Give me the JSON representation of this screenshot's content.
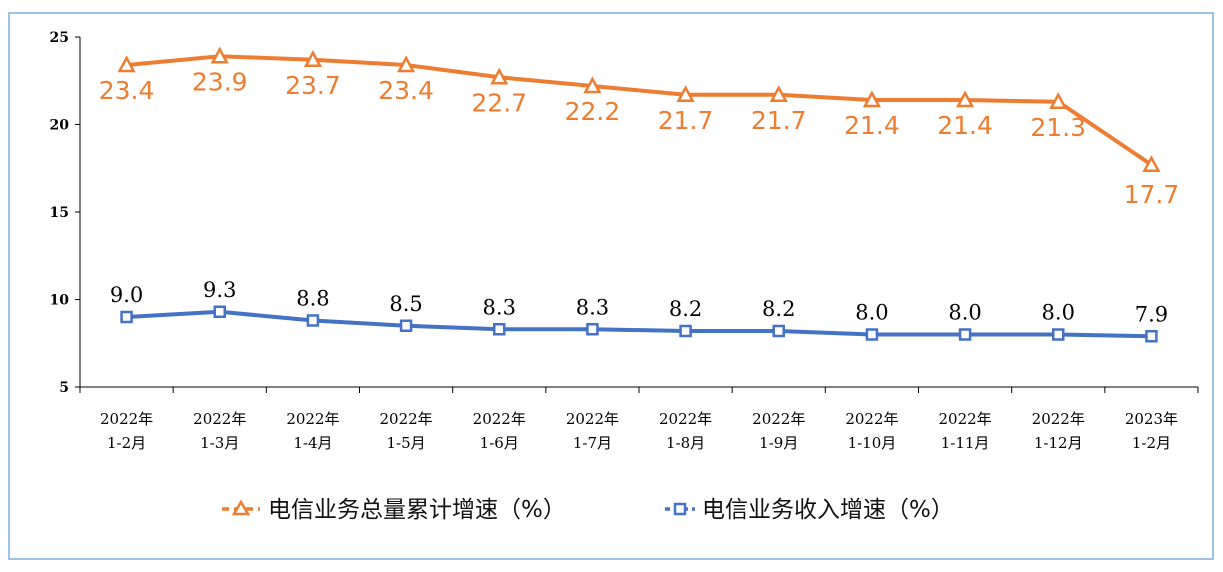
{
  "chart_data": {
    "type": "line",
    "title": "",
    "xlabel": "",
    "ylabel": "",
    "ylim": [
      5,
      25
    ],
    "yticks": [
      5,
      10,
      15,
      20,
      25
    ],
    "categories": [
      [
        "2022年",
        "1-2月"
      ],
      [
        "2022年",
        "1-3月"
      ],
      [
        "2022年",
        "1-4月"
      ],
      [
        "2022年",
        "1-5月"
      ],
      [
        "2022年",
        "1-6月"
      ],
      [
        "2022年",
        "1-7月"
      ],
      [
        "2022年",
        "1-8月"
      ],
      [
        "2022年",
        "1-9月"
      ],
      [
        "2022年",
        "1-10月"
      ],
      [
        "2022年",
        "1-11月"
      ],
      [
        "2022年",
        "1-12月"
      ],
      [
        "2023年",
        "1-2月"
      ]
    ],
    "series": [
      {
        "name": "电信业务总量累计增速（%）",
        "values": [
          23.4,
          23.9,
          23.7,
          23.4,
          22.7,
          22.2,
          21.7,
          21.7,
          21.4,
          21.4,
          21.3,
          17.7
        ],
        "labels": [
          "23.4",
          "23.9",
          "23.7",
          "23.4",
          "22.7",
          "22.2",
          "21.7",
          "21.7",
          "21.4",
          "21.4",
          "21.3",
          "17.7"
        ],
        "color": "#ed7d31",
        "marker": "triangle"
      },
      {
        "name": "电信业务收入增速（%）",
        "values": [
          9.0,
          9.3,
          8.8,
          8.5,
          8.3,
          8.3,
          8.2,
          8.2,
          8.0,
          8.0,
          8.0,
          7.9
        ],
        "labels": [
          "9.0",
          "9.3",
          "8.8",
          "8.5",
          "8.3",
          "8.3",
          "8.2",
          "8.2",
          "8.0",
          "8.0",
          "8.0",
          "7.9"
        ],
        "color": "#4472c4",
        "marker": "square"
      }
    ],
    "legend_position": "bottom-center",
    "grid": false
  }
}
